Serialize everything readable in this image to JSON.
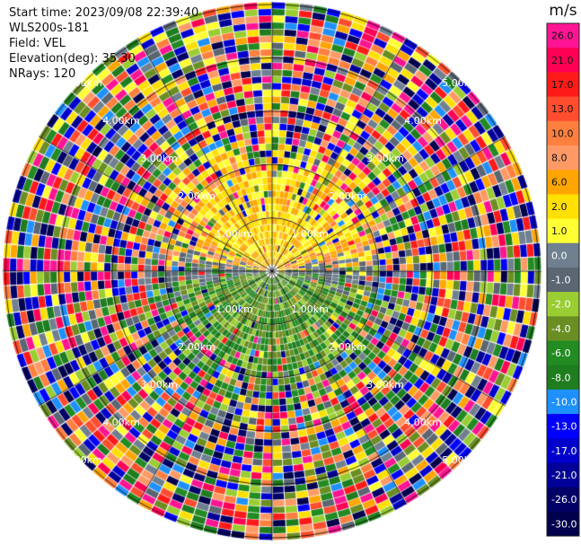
{
  "header": {
    "start_time": "Start time: 2023/09/08 22:39:40",
    "instrument": "WLS200s-181",
    "field": "Field: VEL",
    "elevation": "Elevation(deg): 35.30",
    "nrays": "NRays: 120"
  },
  "colorbar": {
    "unit": "m/s",
    "ticks": [
      "26.0",
      "21.0",
      "17.0",
      "13.0",
      "10.0",
      "8.0",
      "6.0",
      "2.0",
      "1.0",
      "0.0",
      "-1.0",
      "-2.0",
      "-4.0",
      "-6.0",
      "-8.0",
      "-10.0",
      "-13.0",
      "-17.0",
      "-21.0",
      "-26.0",
      "-30.0"
    ],
    "colors": [
      "#ff1493",
      "#ff0055",
      "#ff1a1a",
      "#ff4d2e",
      "#ff7f3f",
      "#ff9a66",
      "#ffa500",
      "#ffe000",
      "#ffff33",
      "#708090",
      "#5a6672",
      "#9acd32",
      "#6b8e23",
      "#228b22",
      "#1e7d1e",
      "#1e90ff",
      "#0000ff",
      "#0000cd",
      "#000099",
      "#000066",
      "#00004d"
    ]
  },
  "range_rings": [
    "1.00km",
    "2.00km",
    "3.00km",
    "4.00km",
    "5.00km"
  ],
  "ppi": {
    "rays": 120,
    "gates": 40,
    "max_range_km": 5.0
  }
}
